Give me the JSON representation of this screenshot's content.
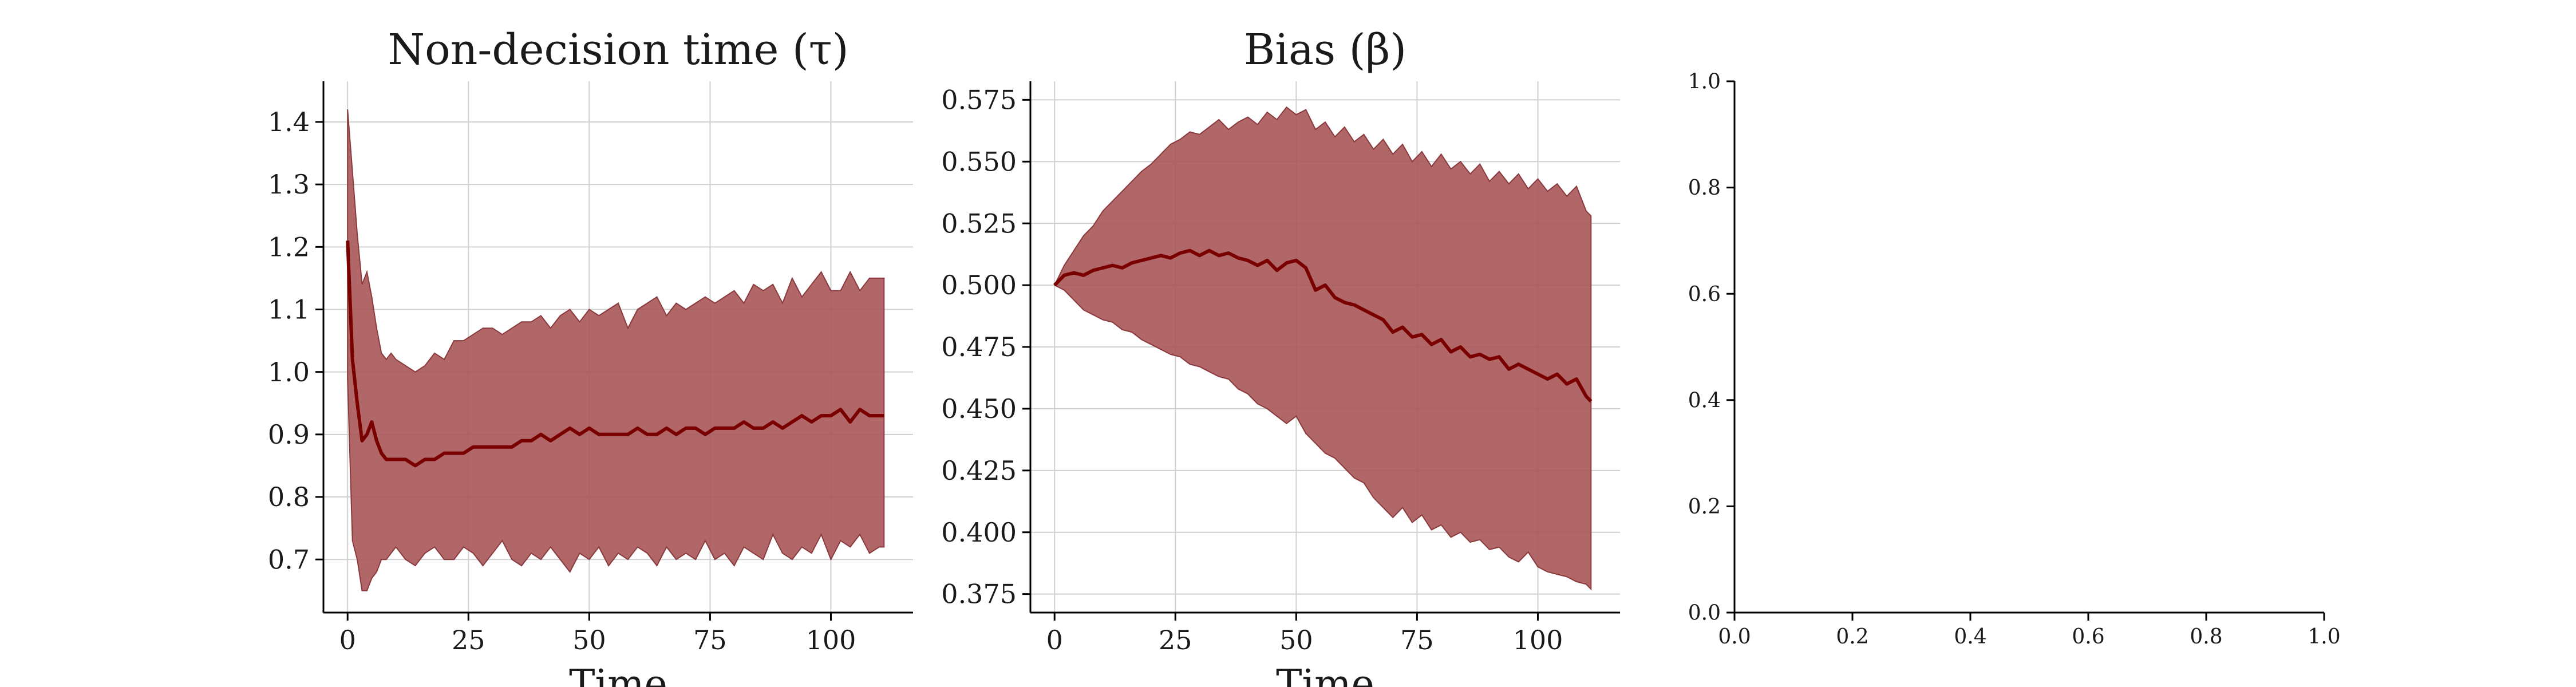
{
  "colors": {
    "band": "#a85558",
    "line": "#7a0000",
    "grid": "#d0d0d0",
    "axis": "#000000"
  },
  "chart_data": [
    {
      "type": "line",
      "title": "Non-decision time (τ)",
      "xlabel": "Time",
      "ylabel": "",
      "xlim": [
        -5,
        117
      ],
      "ylim": [
        0.615,
        1.465
      ],
      "xticks": [
        0,
        25,
        50,
        75,
        100
      ],
      "yticks": [
        0.7,
        0.8,
        0.9,
        1.0,
        1.1,
        1.2,
        1.3,
        1.4
      ],
      "grid": true,
      "x": [
        0,
        1,
        2,
        3,
        4,
        5,
        6,
        7,
        8,
        9,
        10,
        12,
        14,
        16,
        18,
        20,
        22,
        24,
        26,
        28,
        30,
        32,
        34,
        36,
        38,
        40,
        42,
        44,
        46,
        48,
        50,
        52,
        54,
        56,
        58,
        60,
        62,
        64,
        66,
        68,
        70,
        72,
        74,
        76,
        78,
        80,
        82,
        84,
        86,
        88,
        90,
        92,
        94,
        96,
        98,
        100,
        102,
        104,
        106,
        108,
        110,
        111
      ],
      "series": [
        {
          "role": "mean",
          "values": [
            1.21,
            1.02,
            0.95,
            0.89,
            0.9,
            0.92,
            0.89,
            0.87,
            0.86,
            0.86,
            0.86,
            0.86,
            0.85,
            0.86,
            0.86,
            0.87,
            0.87,
            0.87,
            0.88,
            0.88,
            0.88,
            0.88,
            0.88,
            0.89,
            0.89,
            0.9,
            0.89,
            0.9,
            0.91,
            0.9,
            0.91,
            0.9,
            0.9,
            0.9,
            0.9,
            0.91,
            0.9,
            0.9,
            0.91,
            0.9,
            0.91,
            0.91,
            0.9,
            0.91,
            0.91,
            0.91,
            0.92,
            0.91,
            0.91,
            0.92,
            0.91,
            0.92,
            0.93,
            0.92,
            0.93,
            0.93,
            0.94,
            0.92,
            0.94,
            0.93,
            0.93,
            0.93
          ]
        },
        {
          "role": "upper",
          "values": [
            1.42,
            1.32,
            1.22,
            1.14,
            1.16,
            1.12,
            1.07,
            1.03,
            1.02,
            1.03,
            1.02,
            1.01,
            1.0,
            1.01,
            1.03,
            1.02,
            1.05,
            1.05,
            1.06,
            1.07,
            1.07,
            1.06,
            1.07,
            1.08,
            1.08,
            1.09,
            1.07,
            1.09,
            1.1,
            1.08,
            1.1,
            1.09,
            1.1,
            1.11,
            1.07,
            1.1,
            1.11,
            1.12,
            1.09,
            1.11,
            1.1,
            1.11,
            1.12,
            1.11,
            1.12,
            1.13,
            1.11,
            1.14,
            1.13,
            1.14,
            1.11,
            1.15,
            1.12,
            1.14,
            1.16,
            1.13,
            1.13,
            1.16,
            1.13,
            1.15,
            1.15,
            1.15
          ]
        },
        {
          "role": "lower",
          "values": [
            0.99,
            0.73,
            0.7,
            0.65,
            0.65,
            0.67,
            0.68,
            0.7,
            0.7,
            0.71,
            0.72,
            0.7,
            0.69,
            0.71,
            0.72,
            0.7,
            0.7,
            0.72,
            0.71,
            0.69,
            0.71,
            0.73,
            0.7,
            0.69,
            0.71,
            0.7,
            0.72,
            0.7,
            0.68,
            0.71,
            0.7,
            0.72,
            0.69,
            0.71,
            0.7,
            0.72,
            0.71,
            0.69,
            0.72,
            0.7,
            0.71,
            0.7,
            0.73,
            0.7,
            0.71,
            0.69,
            0.72,
            0.71,
            0.7,
            0.74,
            0.71,
            0.7,
            0.72,
            0.71,
            0.74,
            0.7,
            0.73,
            0.72,
            0.74,
            0.71,
            0.72,
            0.72
          ]
        }
      ]
    },
    {
      "type": "line",
      "title": "Bias (β)",
      "xlabel": "Time",
      "ylabel": "",
      "xlim": [
        -5,
        117
      ],
      "ylim": [
        0.3675,
        0.5825
      ],
      "xticks": [
        0,
        25,
        50,
        75,
        100
      ],
      "yticks": [
        0.375,
        0.4,
        0.425,
        0.45,
        0.475,
        0.5,
        0.525,
        0.55,
        0.575
      ],
      "grid": true,
      "x": [
        0,
        2,
        4,
        6,
        8,
        10,
        12,
        14,
        16,
        18,
        20,
        22,
        24,
        26,
        28,
        30,
        32,
        34,
        36,
        38,
        40,
        42,
        44,
        46,
        48,
        50,
        52,
        54,
        56,
        58,
        60,
        62,
        64,
        66,
        68,
        70,
        72,
        74,
        76,
        78,
        80,
        82,
        84,
        86,
        88,
        90,
        92,
        94,
        96,
        98,
        100,
        102,
        104,
        106,
        108,
        110,
        111
      ],
      "series": [
        {
          "role": "mean",
          "values": [
            0.5,
            0.504,
            0.505,
            0.504,
            0.506,
            0.507,
            0.508,
            0.507,
            0.509,
            0.51,
            0.511,
            0.512,
            0.511,
            0.513,
            0.514,
            0.512,
            0.514,
            0.512,
            0.513,
            0.511,
            0.51,
            0.508,
            0.51,
            0.506,
            0.509,
            0.51,
            0.507,
            0.498,
            0.5,
            0.495,
            0.493,
            0.492,
            0.49,
            0.488,
            0.486,
            0.481,
            0.483,
            0.479,
            0.48,
            0.476,
            0.478,
            0.473,
            0.475,
            0.471,
            0.472,
            0.47,
            0.471,
            0.466,
            0.468,
            0.466,
            0.464,
            0.462,
            0.464,
            0.46,
            0.462,
            0.455,
            0.453
          ]
        },
        {
          "role": "upper",
          "values": [
            0.5,
            0.508,
            0.514,
            0.52,
            0.524,
            0.53,
            0.534,
            0.538,
            0.542,
            0.546,
            0.549,
            0.553,
            0.557,
            0.559,
            0.562,
            0.561,
            0.564,
            0.567,
            0.563,
            0.566,
            0.568,
            0.565,
            0.57,
            0.567,
            0.572,
            0.569,
            0.571,
            0.563,
            0.566,
            0.56,
            0.564,
            0.558,
            0.561,
            0.555,
            0.559,
            0.553,
            0.557,
            0.55,
            0.554,
            0.548,
            0.553,
            0.547,
            0.55,
            0.545,
            0.549,
            0.542,
            0.546,
            0.541,
            0.545,
            0.539,
            0.543,
            0.538,
            0.541,
            0.536,
            0.54,
            0.53,
            0.528
          ]
        },
        {
          "role": "lower",
          "values": [
            0.5,
            0.498,
            0.494,
            0.49,
            0.488,
            0.486,
            0.485,
            0.482,
            0.481,
            0.478,
            0.476,
            0.474,
            0.472,
            0.471,
            0.468,
            0.467,
            0.465,
            0.463,
            0.462,
            0.458,
            0.456,
            0.452,
            0.45,
            0.447,
            0.444,
            0.447,
            0.44,
            0.436,
            0.432,
            0.43,
            0.426,
            0.422,
            0.42,
            0.414,
            0.41,
            0.406,
            0.41,
            0.404,
            0.407,
            0.401,
            0.403,
            0.398,
            0.4,
            0.396,
            0.397,
            0.393,
            0.394,
            0.39,
            0.388,
            0.392,
            0.386,
            0.384,
            0.383,
            0.382,
            0.38,
            0.379,
            0.377
          ]
        }
      ]
    },
    {
      "type": "line",
      "title": "",
      "xlabel": "",
      "ylabel": "",
      "xlim": [
        0,
        1
      ],
      "ylim": [
        0,
        1
      ],
      "xticks": [
        0.0,
        0.2,
        0.4,
        0.6,
        0.8,
        1.0
      ],
      "yticks": [
        0.0,
        0.2,
        0.4,
        0.6,
        0.8,
        1.0
      ],
      "tick_format": "decimal1",
      "grid": false,
      "x": [],
      "series": []
    }
  ]
}
